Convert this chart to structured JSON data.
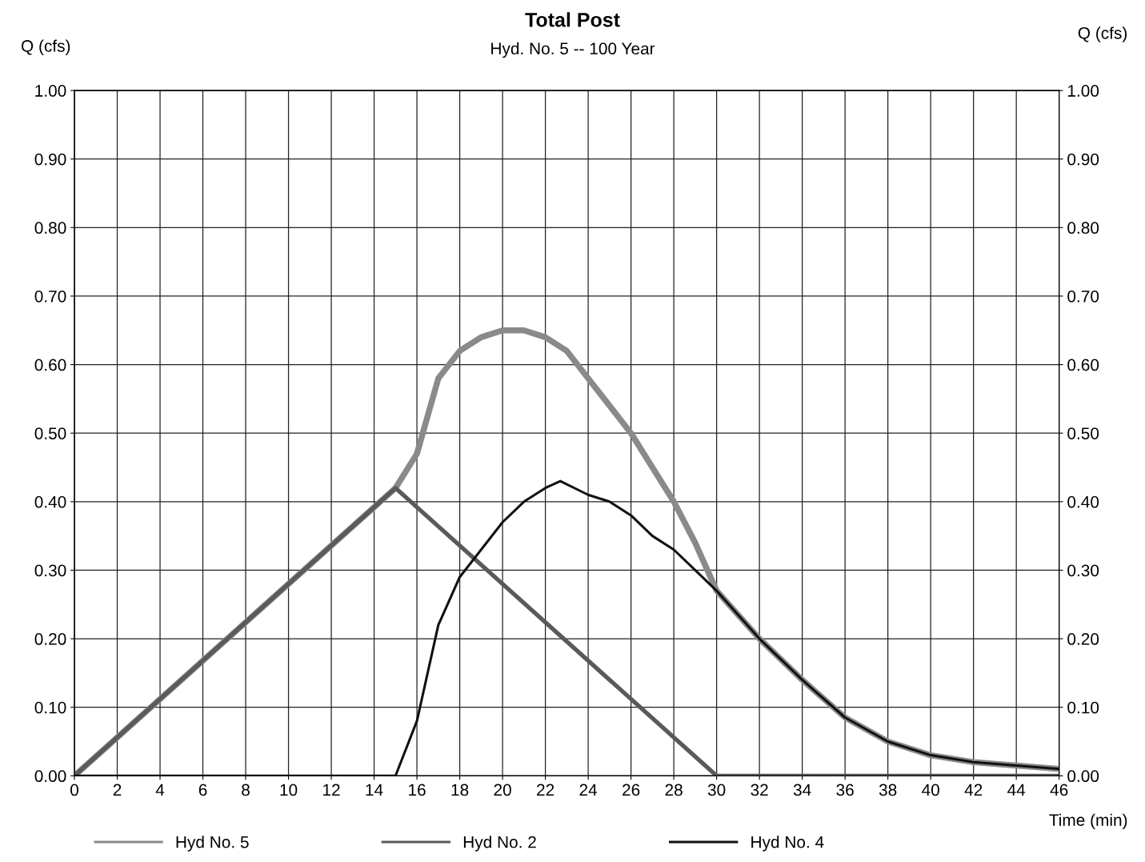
{
  "chart_data": {
    "type": "line",
    "title": "Total Post",
    "subtitle": "Hyd. No. 5 -- 100 Year",
    "xlabel": "Time (min)",
    "ylabel": "Q (cfs)",
    "y2label": "Q (cfs)",
    "series": [
      {
        "name": "Hyd No. 5",
        "color": "#8a8a8a",
        "x": [
          0,
          15,
          16,
          17,
          18,
          19,
          20,
          21,
          22,
          23,
          24,
          25,
          26,
          27,
          28,
          29,
          30,
          32,
          34,
          36,
          38,
          40,
          42,
          44,
          46
        ],
        "values": [
          0,
          0.42,
          0.47,
          0.58,
          0.62,
          0.64,
          0.65,
          0.65,
          0.64,
          0.62,
          0.58,
          0.54,
          0.5,
          0.45,
          0.4,
          0.34,
          0.27,
          0.2,
          0.14,
          0.085,
          0.05,
          0.03,
          0.02,
          0.015,
          0.01
        ]
      },
      {
        "name": "Hyd No. 2",
        "color": "#5a5a5a",
        "x": [
          0,
          15,
          30,
          46
        ],
        "values": [
          0,
          0.42,
          0,
          0
        ]
      },
      {
        "name": "Hyd No. 4",
        "color": "#111111",
        "x": [
          0,
          15,
          16,
          17,
          18,
          19,
          20,
          21,
          22,
          22.7,
          24,
          25,
          26,
          27,
          28,
          29,
          30,
          32,
          34,
          36,
          38,
          40,
          42,
          44,
          46
        ],
        "values": [
          0,
          0,
          0.08,
          0.22,
          0.29,
          0.33,
          0.37,
          0.4,
          0.42,
          0.43,
          0.41,
          0.4,
          0.38,
          0.35,
          0.33,
          0.3,
          0.27,
          0.2,
          0.14,
          0.085,
          0.05,
          0.03,
          0.02,
          0.015,
          0.01
        ]
      }
    ],
    "xlim": [
      0,
      46
    ],
    "xticks": [
      0,
      2,
      4,
      6,
      8,
      10,
      12,
      14,
      16,
      18,
      20,
      22,
      24,
      26,
      28,
      30,
      32,
      34,
      36,
      38,
      40,
      42,
      44,
      46
    ],
    "ylim": [
      0,
      1
    ],
    "yticks": [
      {
        "value": 0,
        "label": "0.00"
      },
      {
        "value": 0.1,
        "label": "0.10"
      },
      {
        "value": 0.2,
        "label": "0.20"
      },
      {
        "value": 0.3,
        "label": "0.30"
      },
      {
        "value": 0.4,
        "label": "0.40"
      },
      {
        "value": 0.5,
        "label": "0.50"
      },
      {
        "value": 0.6,
        "label": "0.60"
      },
      {
        "value": 0.7,
        "label": "0.70"
      },
      {
        "value": 0.8,
        "label": "0.80"
      },
      {
        "value": 0.9,
        "label": "0.90"
      },
      {
        "value": 1,
        "label": "1.00"
      }
    ],
    "y2lim": [
      0,
      1
    ],
    "y2ticks": [
      {
        "value": 0,
        "label": "0.00"
      },
      {
        "value": 0.1,
        "label": "0.10"
      },
      {
        "value": 0.2,
        "label": "0.20"
      },
      {
        "value": 0.3,
        "label": "0.30"
      },
      {
        "value": 0.4,
        "label": "0.40"
      },
      {
        "value": 0.5,
        "label": "0.50"
      },
      {
        "value": 0.6,
        "label": "0.60"
      },
      {
        "value": 0.7,
        "label": "0.70"
      },
      {
        "value": 0.8,
        "label": "0.80"
      },
      {
        "value": 0.9,
        "label": "0.90"
      },
      {
        "value": 1,
        "label": "1.00"
      }
    ],
    "grid": true,
    "legend": "bottom left",
    "marker": "none",
    "line_style": "solid"
  }
}
